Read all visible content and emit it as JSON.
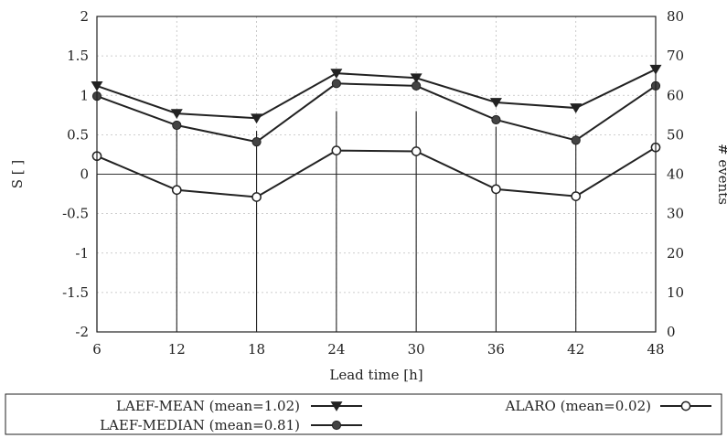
{
  "chart_data": {
    "type": "line",
    "xlabel": "Lead time [h]",
    "ylabel": "S [ ]",
    "y2label": "# events",
    "x": [
      6,
      12,
      18,
      24,
      30,
      36,
      42,
      48
    ],
    "xticks": [
      "6",
      "12",
      "18",
      "24",
      "30",
      "36",
      "42",
      "48"
    ],
    "ylim": [
      -2,
      2
    ],
    "yticks": [
      "-2",
      "-1.5",
      "-1",
      "-0.5",
      "0",
      "0.5",
      "1",
      "1.5",
      "2"
    ],
    "y2lim": [
      0,
      80
    ],
    "y2ticks": [
      "0",
      "10",
      "20",
      "30",
      "40",
      "50",
      "60",
      "70",
      "80"
    ],
    "grid": true,
    "zero_line": true,
    "series": [
      {
        "name": "LAEF-MEAN (mean=1.02)",
        "marker": "triangle-down",
        "values": [
          1.12,
          0.77,
          0.71,
          1.28,
          1.22,
          0.91,
          0.84,
          1.33
        ]
      },
      {
        "name": "LAEF-MEDIAN (mean=0.81)",
        "marker": "filled-circle",
        "values": [
          0.99,
          0.62,
          0.41,
          1.15,
          1.12,
          0.69,
          0.43,
          1.12
        ]
      },
      {
        "name": "ALARO (mean=0.02)",
        "marker": "open-circle",
        "values": [
          0.23,
          -0.2,
          -0.29,
          0.3,
          0.29,
          -0.19,
          -0.28,
          0.34
        ]
      }
    ],
    "events": {
      "axis": "right",
      "style": "impulses",
      "values": [
        40,
        53,
        51,
        56,
        56,
        52,
        50,
        40
      ]
    },
    "legend": {
      "placement": "bottom",
      "entries": [
        "LAEF-MEAN (mean=1.02)",
        "LAEF-MEDIAN (mean=0.81)",
        "ALARO (mean=0.02)"
      ]
    }
  }
}
